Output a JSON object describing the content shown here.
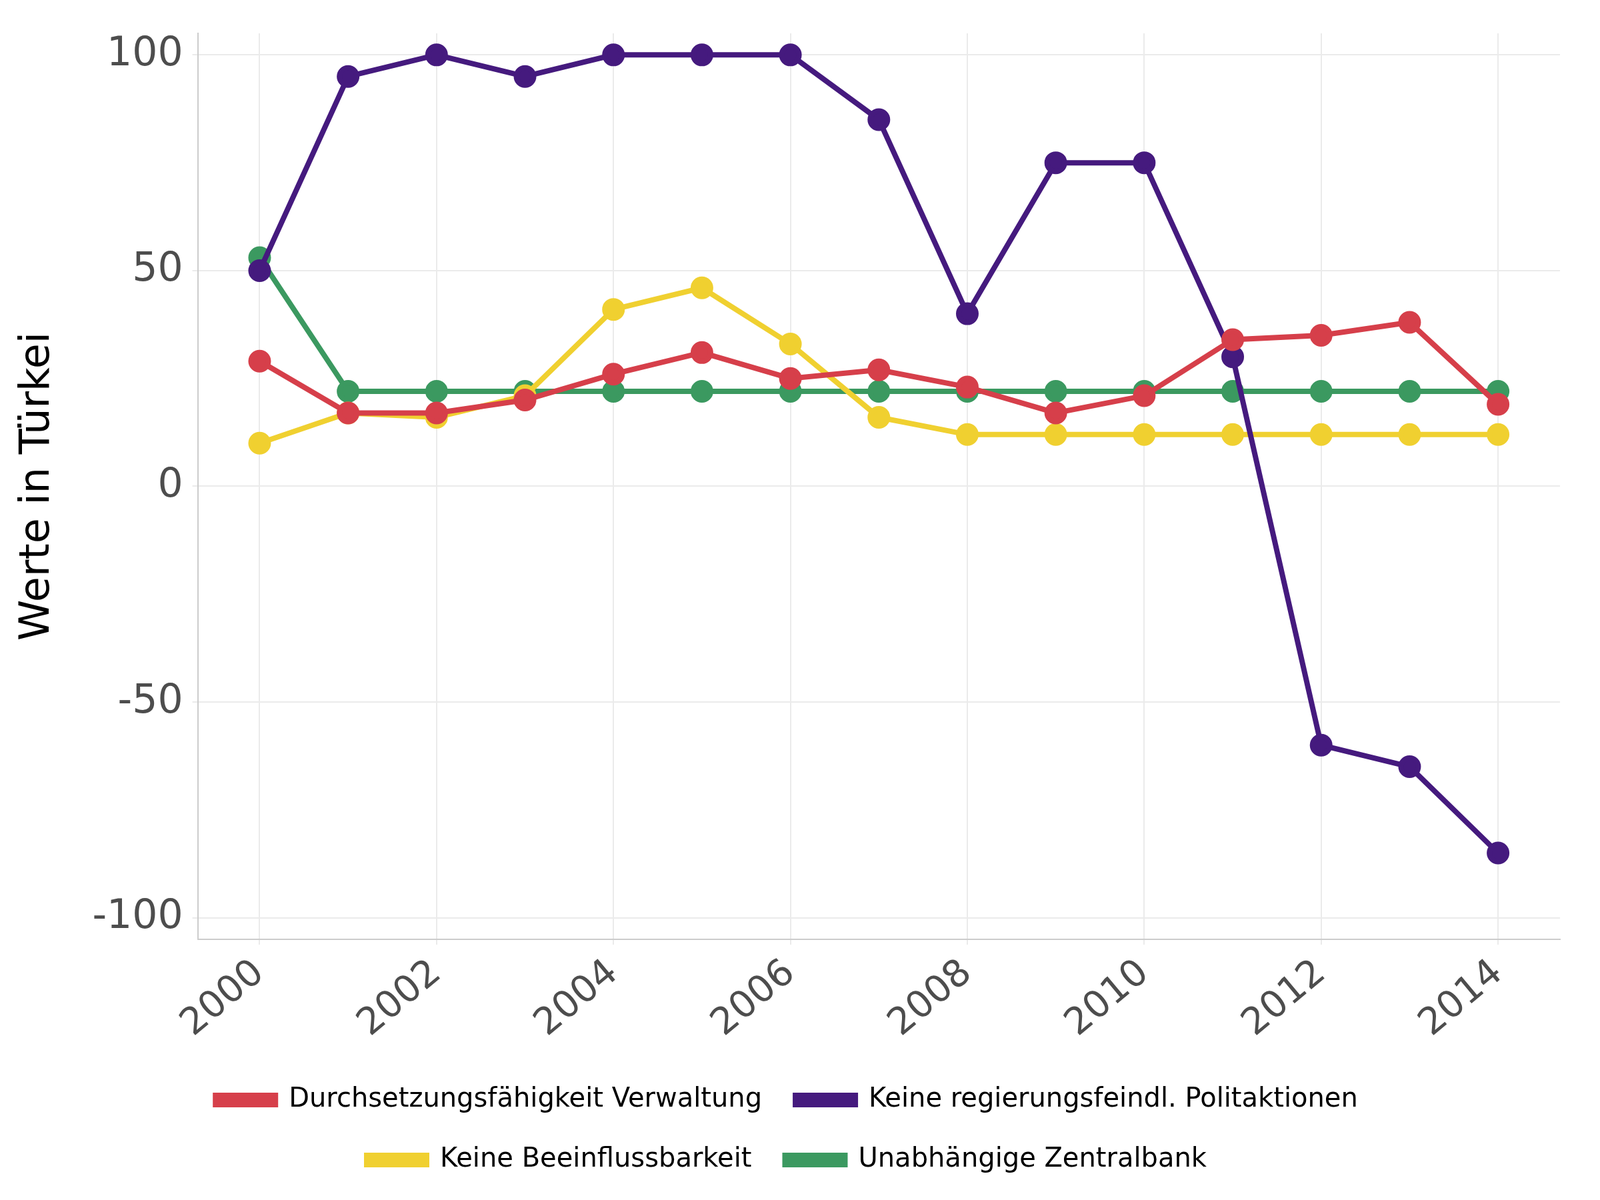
{
  "chart_data": {
    "type": "line",
    "y_label": "Werte in Türkei",
    "x": [
      2000,
      2001,
      2002,
      2003,
      2004,
      2005,
      2006,
      2007,
      2008,
      2009,
      2010,
      2011,
      2012,
      2013,
      2014
    ],
    "xlim": [
      1999.3,
      2014.7
    ],
    "xticks": [
      2000,
      2002,
      2004,
      2006,
      2008,
      2010,
      2012,
      2014
    ],
    "ylim": [
      -105,
      105
    ],
    "yticks": [
      -100,
      -50,
      0,
      50,
      100
    ],
    "grid": true,
    "legend": "bottom",
    "marker": "circle",
    "series": [
      {
        "name": "Durchsetzungsfähigkeit Verwaltung",
        "color": "#d63f4a",
        "values": [
          29,
          17,
          17,
          20,
          26,
          31,
          25,
          27,
          23,
          17,
          21,
          34,
          35,
          38,
          19
        ]
      },
      {
        "name": "Keine regierungsfeindl. Politaktionen",
        "color": "#451a7e",
        "values": [
          50,
          95,
          100,
          95,
          100,
          100,
          100,
          85,
          40,
          75,
          75,
          30,
          -60,
          -65,
          -85
        ]
      },
      {
        "name": "Keine Beeinflussbarkeit",
        "color": "#f0d030",
        "values": [
          10,
          17,
          16,
          21,
          41,
          46,
          33,
          16,
          12,
          12,
          12,
          12,
          12,
          12,
          12
        ]
      },
      {
        "name": "Unabhängige Zentralbank",
        "color": "#3b9960",
        "values": [
          53,
          22,
          22,
          22,
          22,
          22,
          22,
          22,
          22,
          22,
          22,
          22,
          22,
          22,
          22
        ]
      }
    ]
  }
}
